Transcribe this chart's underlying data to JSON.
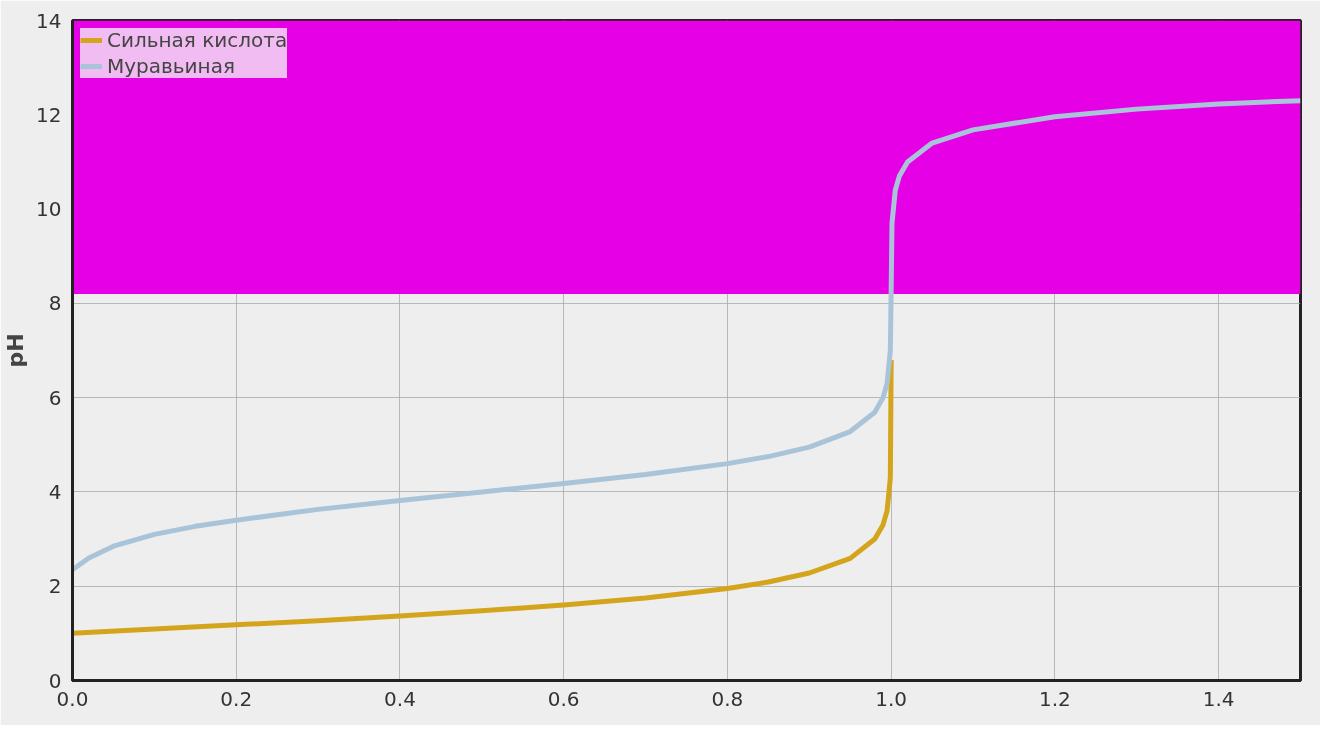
{
  "chart_data": {
    "type": "line",
    "ylabel": "pH",
    "xlim": [
      0,
      1.5
    ],
    "ylim": [
      0,
      14
    ],
    "xticks": [
      {
        "value": 0,
        "label": "0.0"
      },
      {
        "value": 0.2,
        "label": "0.2"
      },
      {
        "value": 0.4,
        "label": "0.4"
      },
      {
        "value": 0.6,
        "label": "0.6"
      },
      {
        "value": 0.8,
        "label": "0.8"
      },
      {
        "value": 1,
        "label": "1.0"
      },
      {
        "value": 1.2,
        "label": "1.2"
      },
      {
        "value": 1.4,
        "label": "1.4"
      }
    ],
    "yticks": [
      0,
      2,
      4,
      6,
      8,
      10,
      12,
      14
    ],
    "grid": true,
    "legend": "top left",
    "bands": [
      {
        "axis": "y",
        "from": 8.2,
        "to": 14,
        "color": "#e600e6"
      }
    ],
    "series": [
      {
        "name": "Сильная кислота",
        "color": "#d4a51c",
        "x": [
          0,
          0.1,
          0.2,
          0.3,
          0.4,
          0.5,
          0.6,
          0.7,
          0.8,
          0.85,
          0.9,
          0.95,
          0.98,
          0.99,
          0.995,
          0.999,
          1.0
        ],
        "values": [
          1.0,
          1.09,
          1.18,
          1.27,
          1.37,
          1.48,
          1.6,
          1.75,
          1.95,
          2.09,
          2.28,
          2.59,
          3.0,
          3.3,
          3.6,
          4.3,
          6.8
        ]
      },
      {
        "name": "Муравьиная",
        "color": "#a9c4d8",
        "x": [
          0,
          0.02,
          0.05,
          0.1,
          0.15,
          0.2,
          0.3,
          0.4,
          0.5,
          0.6,
          0.7,
          0.8,
          0.85,
          0.9,
          0.95,
          0.98,
          0.99,
          0.995,
          0.999,
          1.0,
          1.001,
          1.005,
          1.01,
          1.02,
          1.05,
          1.1,
          1.2,
          1.3,
          1.4,
          1.5
        ],
        "values": [
          2.35,
          2.6,
          2.85,
          3.1,
          3.27,
          3.4,
          3.63,
          3.82,
          4.0,
          4.18,
          4.37,
          4.6,
          4.75,
          4.95,
          5.28,
          5.69,
          6.0,
          6.3,
          7.0,
          8.3,
          9.7,
          10.4,
          10.7,
          11.0,
          11.4,
          11.68,
          11.96,
          12.12,
          12.23,
          12.3
        ]
      }
    ]
  }
}
